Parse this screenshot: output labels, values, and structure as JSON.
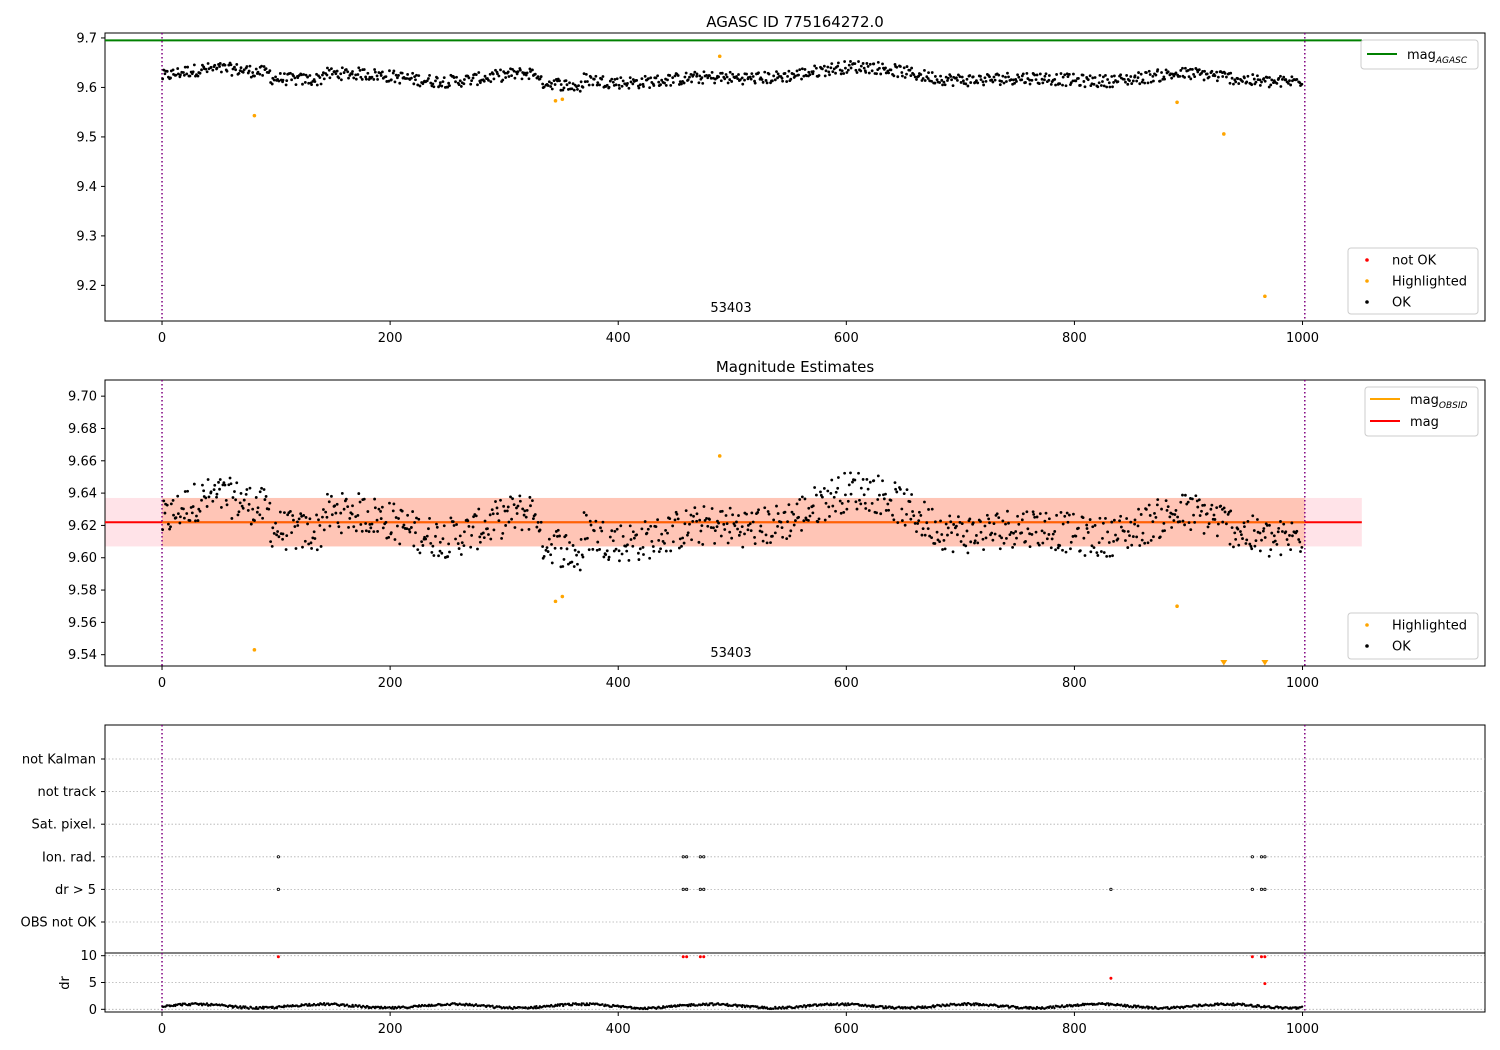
{
  "chart_data": [
    {
      "id": "agasc_panel",
      "type": "scatter",
      "title": "AGASC ID 775164272.0",
      "xlabel": "",
      "ylabel": "",
      "xlim": [
        -50,
        1160
      ],
      "ylim": [
        9.128,
        9.71
      ],
      "xticks": [
        0,
        200,
        400,
        600,
        800,
        1000
      ],
      "yticks": [
        9.2,
        9.3,
        9.4,
        9.5,
        9.6,
        9.7
      ],
      "obsid_label": "53403",
      "obs_bounds": [
        0,
        1002
      ],
      "mag_agasc": 9.695,
      "ok_mean": 9.622,
      "ok_amplitude": 0.014,
      "ok_jitter": 0.025,
      "highlighted": [
        {
          "x": 81,
          "y": 9.543
        },
        {
          "x": 345,
          "y": 9.573
        },
        {
          "x": 351,
          "y": 9.576
        },
        {
          "x": 489,
          "y": 9.663
        },
        {
          "x": 890,
          "y": 9.57
        },
        {
          "x": 931,
          "y": 9.506
        },
        {
          "x": 967,
          "y": 9.178
        }
      ],
      "legend_top": [
        {
          "label": "mag",
          "sub": "AGASC",
          "color": "#008000"
        }
      ],
      "legend_bottom": [
        {
          "label": "not OK",
          "color": "#ff0000"
        },
        {
          "label": "Highlighted",
          "color": "#ffa500"
        },
        {
          "label": "OK",
          "color": "#000000"
        }
      ]
    },
    {
      "id": "estimates_panel",
      "type": "scatter",
      "title": "Magnitude Estimates",
      "xlabel": "",
      "ylabel": "",
      "xlim": [
        -50,
        1160
      ],
      "ylim": [
        9.533,
        9.71
      ],
      "xticks": [
        0,
        200,
        400,
        600,
        800,
        1000
      ],
      "yticks": [
        9.54,
        9.56,
        9.58,
        9.6,
        9.62,
        9.64,
        9.66,
        9.68,
        9.7
      ],
      "obsid_label": "53403",
      "mag": 9.622,
      "mag_band": [
        9.607,
        9.637
      ],
      "mag_obsid_band": [
        9.607,
        9.637
      ],
      "band_xrange": [
        -50,
        1052
      ],
      "obsid_band_xrange": [
        0,
        1002
      ],
      "offscale_markers": [
        931,
        967
      ],
      "legend_top": [
        {
          "label": "mag",
          "sub": "OBSID",
          "color": "#ffa500"
        },
        {
          "label": "mag",
          "sub": "",
          "color": "#ff0000"
        }
      ],
      "legend_bottom": [
        {
          "label": "Highlighted",
          "color": "#ffa500"
        },
        {
          "label": "OK",
          "color": "#000000"
        }
      ]
    },
    {
      "id": "flags_panel",
      "type": "scatter",
      "xlim": [
        -50,
        1160
      ],
      "xticks": [
        0,
        200,
        400,
        600,
        800,
        1000
      ],
      "flag_rows": [
        "not Kalman",
        "not track",
        "Sat. pixel.",
        "Ion. rad.",
        "dr > 5",
        "OBS not OK"
      ],
      "ion_rad_x": [
        102,
        457,
        460,
        472,
        475,
        956,
        964,
        967
      ],
      "dr5_x": [
        102,
        457,
        460,
        472,
        475,
        832,
        956,
        964,
        967
      ],
      "dr_ylabel": "dr",
      "dr_yticks": [
        0,
        5,
        10
      ],
      "dr_ylim": [
        -0.5,
        10.5
      ],
      "dr_baseline_mean": 0.6,
      "dr_spikes": [
        {
          "x": 102,
          "y": 9.8
        },
        {
          "x": 457,
          "y": 9.8
        },
        {
          "x": 460,
          "y": 9.8
        },
        {
          "x": 472,
          "y": 9.8
        },
        {
          "x": 475,
          "y": 9.8
        },
        {
          "x": 832,
          "y": 5.8
        },
        {
          "x": 956,
          "y": 9.8
        },
        {
          "x": 964,
          "y": 9.8
        },
        {
          "x": 967,
          "y": 9.8
        },
        {
          "x": 967,
          "y": 4.8
        }
      ]
    }
  ],
  "colors": {
    "ok": "#000000",
    "highlighted": "#ffa500",
    "not_ok": "#ff0000",
    "mag_agasc": "#008000",
    "mag": "#ff0000",
    "mag_obsid": "#ffa500",
    "obs_bounds": "#800080",
    "band_mag": "#ffc0cb",
    "band_obsid": "#ffa07a",
    "gridline": "#b0b0b0"
  }
}
